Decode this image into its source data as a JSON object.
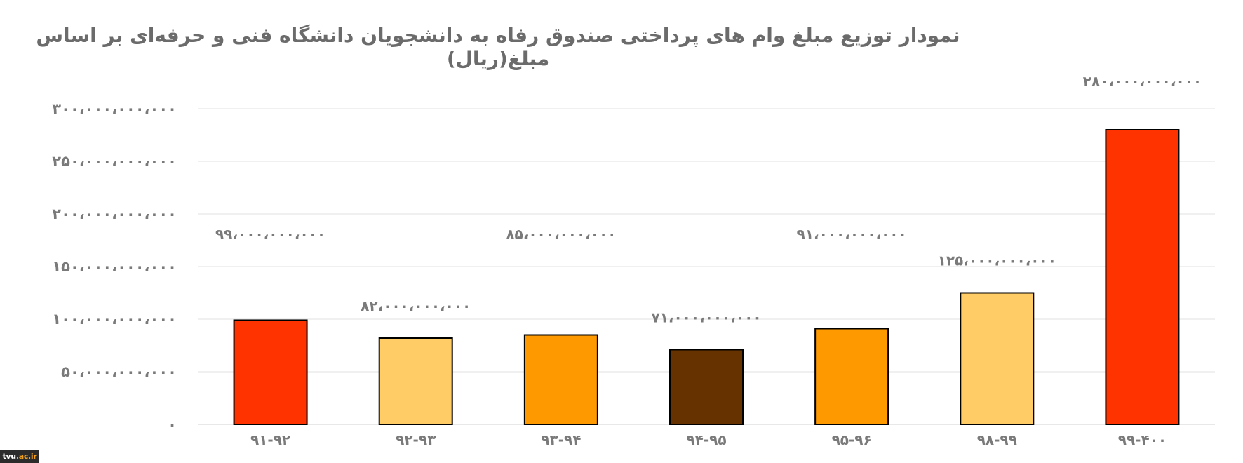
{
  "chart_data": {
    "type": "bar",
    "title": "نمودار توزیع مبلغ وام های پرداختی صندوق رفاه به دانشجویان دانشگاه فنی و حرفه‌ای بر اساس مبلغ(ریال)",
    "categories": [
      "۹۱-۹۲",
      "۹۲-۹۳",
      "۹۳-۹۴",
      "۹۴-۹۵",
      "۹۵-۹۶",
      "۹۸-۹۹",
      "۹۹-۴۰۰"
    ],
    "values": [
      99000000000,
      82000000000,
      85000000000,
      71000000000,
      91000000000,
      125000000000,
      280000000000
    ],
    "data_labels": [
      "۹۹،۰۰۰،۰۰۰،۰۰۰",
      "۸۲،۰۰۰،۰۰۰،۰۰۰",
      "۸۵،۰۰۰،۰۰۰،۰۰۰",
      "۷۱،۰۰۰،۰۰۰،۰۰۰",
      "۹۱،۰۰۰،۰۰۰،۰۰۰",
      "۱۲۵،۰۰۰،۰۰۰،۰۰۰",
      "۲۸۰،۰۰۰،۰۰۰،۰۰۰"
    ],
    "bar_colors": [
      "#ff3300",
      "#ffcc66",
      "#ff9900",
      "#663300",
      "#ff9900",
      "#ffcc66",
      "#ff3300"
    ],
    "ylim": [
      0,
      300000000000
    ],
    "yticks": [
      0,
      50000000000,
      100000000000,
      150000000000,
      200000000000,
      250000000000,
      300000000000
    ],
    "ytick_labels": [
      "۰",
      "۵۰،۰۰۰،۰۰۰،۰۰۰",
      "۱۰۰،۰۰۰،۰۰۰،۰۰۰",
      "۱۵۰،۰۰۰،۰۰۰،۰۰۰",
      "۲۰۰،۰۰۰،۰۰۰،۰۰۰",
      "۲۵۰،۰۰۰،۰۰۰،۰۰۰",
      "۳۰۰،۰۰۰،۰۰۰،۰۰۰"
    ],
    "grid": true,
    "legend": "none",
    "xlabel": "",
    "ylabel": ""
  },
  "watermark": {
    "prefix": "tvu",
    "accent": ".ac.ir"
  }
}
